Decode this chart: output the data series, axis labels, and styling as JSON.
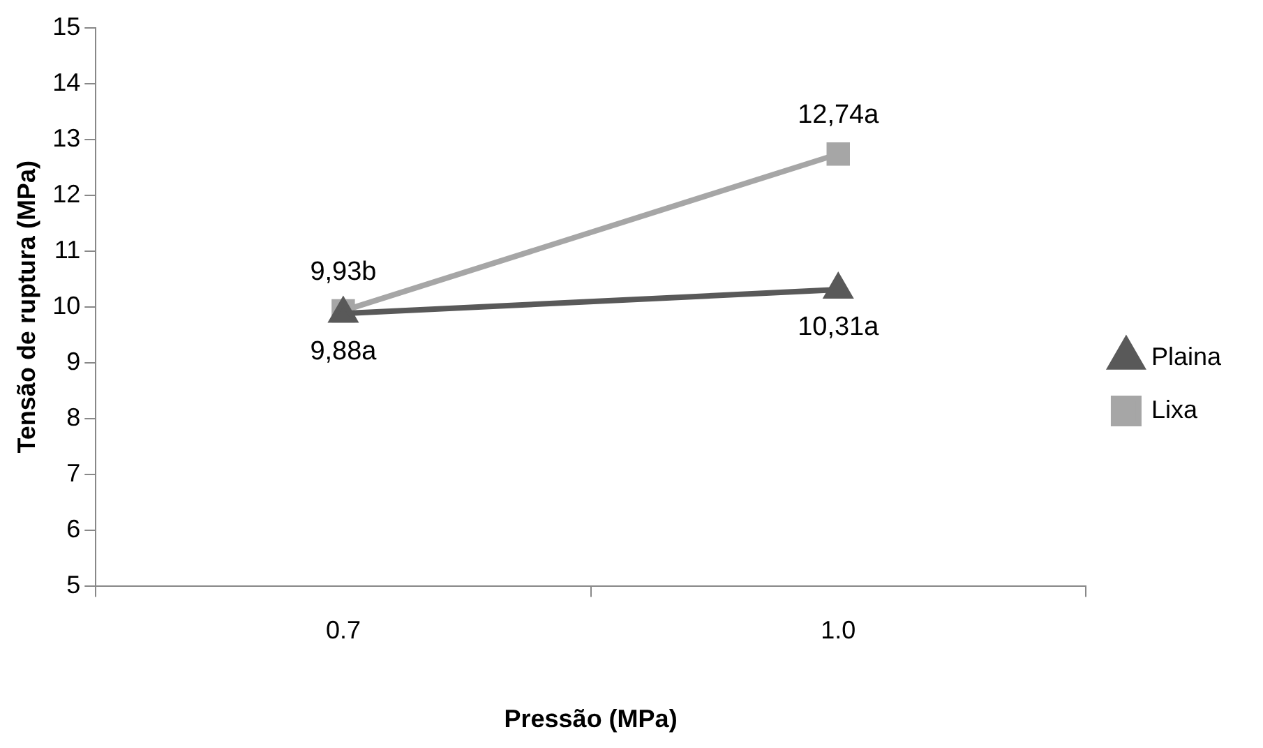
{
  "chart_data": {
    "type": "line",
    "xlabel": "Pressão (MPa)",
    "ylabel": "Tensão de ruptura (MPa)",
    "categories": [
      "0.7",
      "1.0"
    ],
    "series": [
      {
        "name": "Plaina",
        "color": "#595959",
        "marker": "triangle",
        "values": [
          9.88,
          10.31
        ],
        "value_labels": [
          "9,88a",
          "10,31a"
        ]
      },
      {
        "name": "Lixa",
        "color": "#a6a6a6",
        "marker": "square",
        "values": [
          9.93,
          12.74
        ],
        "value_labels": [
          "9,93b",
          "12,74a"
        ]
      }
    ],
    "ylim": [
      5,
      15
    ],
    "yticks": [
      5,
      6,
      7,
      8,
      9,
      10,
      11,
      12,
      13,
      14,
      15
    ],
    "grid": false,
    "legend": "right",
    "line_style": "solid"
  }
}
